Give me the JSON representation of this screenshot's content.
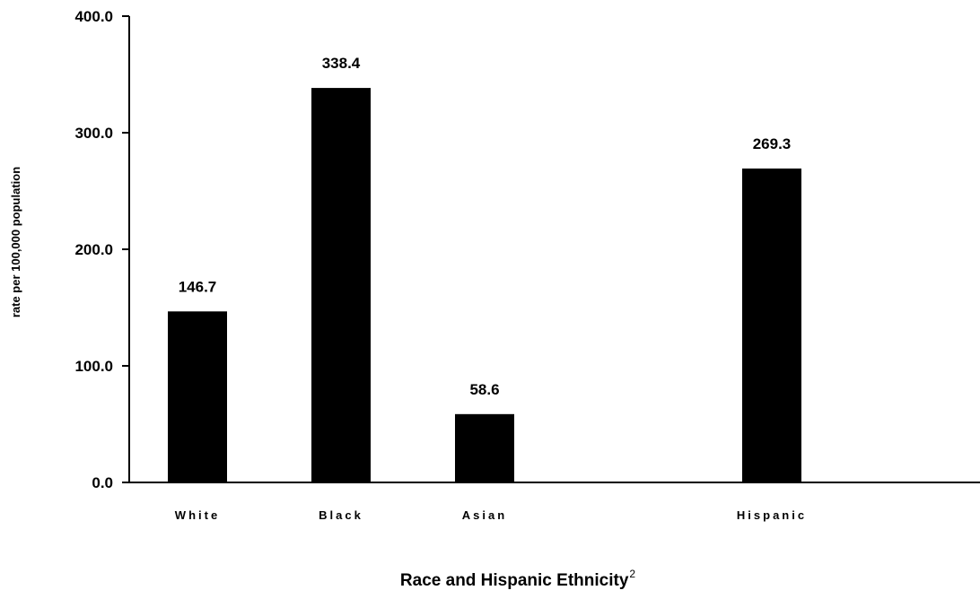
{
  "chart_data": {
    "type": "bar",
    "categories": [
      "White",
      "Black",
      "Asian",
      "",
      "Hispanic"
    ],
    "values": [
      146.7,
      338.4,
      58.6,
      null,
      269.3
    ],
    "data_labels": [
      "146.7",
      "338.4",
      "58.6",
      "",
      "269.3"
    ],
    "ylim": [
      0,
      400
    ],
    "yticks": [
      0,
      100,
      200,
      300,
      400
    ],
    "ytick_labels": [
      "0.0",
      "100.0",
      "200.0",
      "300.0",
      "400.0"
    ],
    "ylabel": "rate per 100,000 population",
    "xlabel": "Race and Hispanic Ethnicity",
    "xlabel_superscript": "2",
    "title": "",
    "grid": false,
    "legend": "none",
    "bar_color": "#000000",
    "axis_color": "#000000"
  }
}
